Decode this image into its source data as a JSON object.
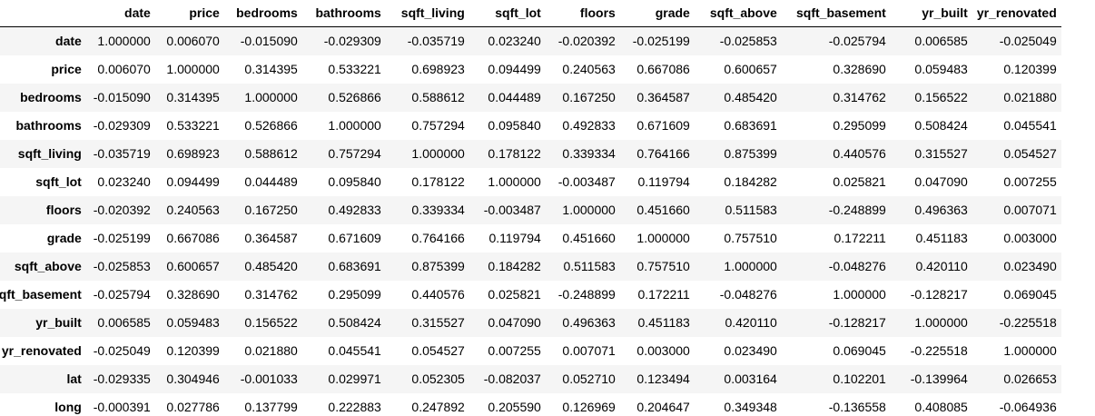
{
  "table": {
    "columns": [
      "date",
      "price",
      "bedrooms",
      "bathrooms",
      "sqft_living",
      "sqft_lot",
      "floors",
      "grade",
      "sqft_above",
      "sqft_basement",
      "yr_built",
      "yr_renovated"
    ],
    "rows": [
      {
        "index": "date",
        "values": [
          "1.000000",
          "0.006070",
          "-0.015090",
          "-0.029309",
          "-0.035719",
          "0.023240",
          "-0.020392",
          "-0.025199",
          "-0.025853",
          "-0.025794",
          "0.006585",
          "-0.025049"
        ]
      },
      {
        "index": "price",
        "values": [
          "0.006070",
          "1.000000",
          "0.314395",
          "0.533221",
          "0.698923",
          "0.094499",
          "0.240563",
          "0.667086",
          "0.600657",
          "0.328690",
          "0.059483",
          "0.120399"
        ]
      },
      {
        "index": "bedrooms",
        "values": [
          "-0.015090",
          "0.314395",
          "1.000000",
          "0.526866",
          "0.588612",
          "0.044489",
          "0.167250",
          "0.364587",
          "0.485420",
          "0.314762",
          "0.156522",
          "0.021880"
        ]
      },
      {
        "index": "bathrooms",
        "values": [
          "-0.029309",
          "0.533221",
          "0.526866",
          "1.000000",
          "0.757294",
          "0.095840",
          "0.492833",
          "0.671609",
          "0.683691",
          "0.295099",
          "0.508424",
          "0.045541"
        ]
      },
      {
        "index": "sqft_living",
        "values": [
          "-0.035719",
          "0.698923",
          "0.588612",
          "0.757294",
          "1.000000",
          "0.178122",
          "0.339334",
          "0.764166",
          "0.875399",
          "0.440576",
          "0.315527",
          "0.054527"
        ]
      },
      {
        "index": "sqft_lot",
        "values": [
          "0.023240",
          "0.094499",
          "0.044489",
          "0.095840",
          "0.178122",
          "1.000000",
          "-0.003487",
          "0.119794",
          "0.184282",
          "0.025821",
          "0.047090",
          "0.007255"
        ]
      },
      {
        "index": "floors",
        "values": [
          "-0.020392",
          "0.240563",
          "0.167250",
          "0.492833",
          "0.339334",
          "-0.003487",
          "1.000000",
          "0.451660",
          "0.511583",
          "-0.248899",
          "0.496363",
          "0.007071"
        ]
      },
      {
        "index": "grade",
        "values": [
          "-0.025199",
          "0.667086",
          "0.364587",
          "0.671609",
          "0.764166",
          "0.119794",
          "0.451660",
          "1.000000",
          "0.757510",
          "0.172211",
          "0.451183",
          "0.003000"
        ]
      },
      {
        "index": "sqft_above",
        "values": [
          "-0.025853",
          "0.600657",
          "0.485420",
          "0.683691",
          "0.875399",
          "0.184282",
          "0.511583",
          "0.757510",
          "1.000000",
          "-0.048276",
          "0.420110",
          "0.023490"
        ]
      },
      {
        "index": "sqft_basement",
        "values": [
          "-0.025794",
          "0.328690",
          "0.314762",
          "0.295099",
          "0.440576",
          "0.025821",
          "-0.248899",
          "0.172211",
          "-0.048276",
          "1.000000",
          "-0.128217",
          "0.069045"
        ]
      },
      {
        "index": "yr_built",
        "values": [
          "0.006585",
          "0.059483",
          "0.156522",
          "0.508424",
          "0.315527",
          "0.047090",
          "0.496363",
          "0.451183",
          "0.420110",
          "-0.128217",
          "1.000000",
          "-0.225518"
        ]
      },
      {
        "index": "yr_renovated",
        "values": [
          "-0.025049",
          "0.120399",
          "0.021880",
          "0.045541",
          "0.054527",
          "0.007255",
          "0.007071",
          "0.003000",
          "0.023490",
          "0.069045",
          "-0.225518",
          "1.000000"
        ]
      },
      {
        "index": "lat",
        "values": [
          "-0.029335",
          "0.304946",
          "-0.001033",
          "0.029971",
          "0.052305",
          "-0.082037",
          "0.052710",
          "0.123494",
          "0.003164",
          "0.102201",
          "-0.139964",
          "0.026653"
        ]
      },
      {
        "index": "long",
        "values": [
          "-0.000391",
          "0.027786",
          "0.137799",
          "0.222883",
          "0.247892",
          "0.205590",
          "0.126969",
          "0.204647",
          "0.349348",
          "-0.136558",
          "0.408085",
          "-0.064936"
        ]
      }
    ]
  }
}
